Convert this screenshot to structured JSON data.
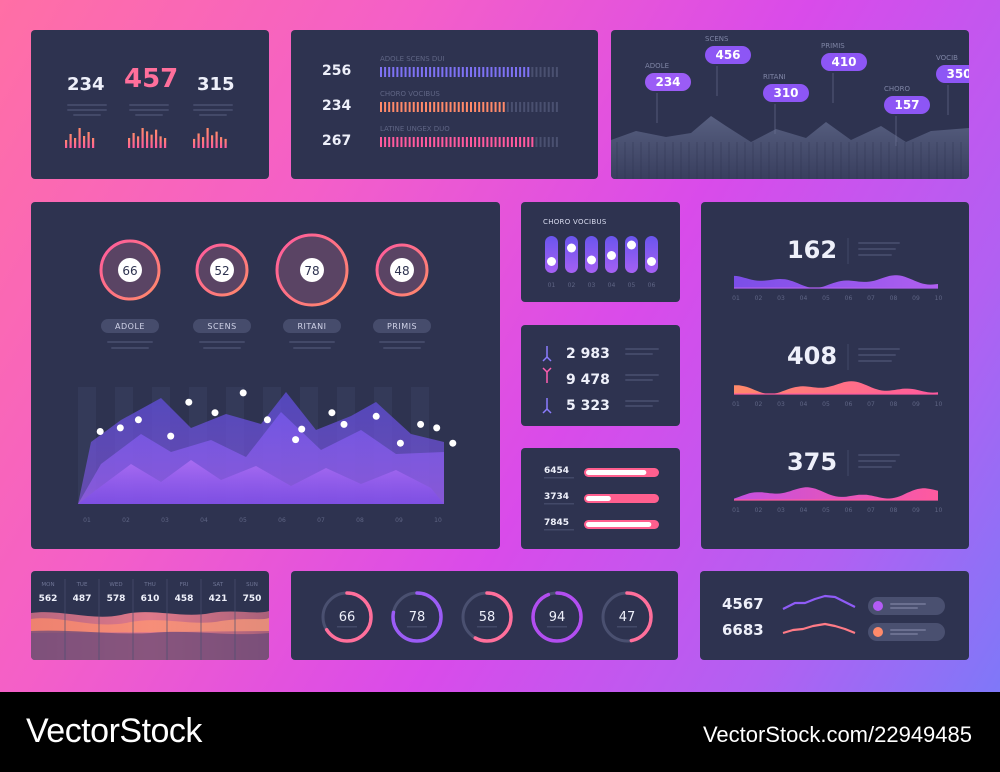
{
  "watermark": {
    "brand": "VectorStock",
    "id": "VectorStock.com/22949485"
  },
  "panel1": {
    "stats": [
      {
        "value": "234",
        "color": "#eef0fa"
      },
      {
        "value": "457",
        "color": "#ff6f9b"
      },
      {
        "value": "315",
        "color": "#eef0fa"
      }
    ],
    "chart_data": {
      "type": "bar",
      "series": [
        {
          "values": [
            4,
            7,
            5,
            10,
            6,
            8,
            5
          ]
        },
        {
          "values": [
            6,
            9,
            7,
            12,
            10,
            8,
            11,
            7,
            6
          ]
        },
        {
          "values": [
            5,
            8,
            6,
            11,
            7,
            9,
            6,
            5
          ]
        }
      ]
    }
  },
  "panel2": {
    "rows": [
      {
        "value": "256",
        "label": "ADOLE SCENS DUI",
        "fraction": 0.84,
        "color": "#7e72f4"
      },
      {
        "value": "234",
        "label": "CHORO VOCIBUS",
        "fraction": 0.71,
        "color": "#ff8a6a"
      },
      {
        "value": "267",
        "label": "LATINE UNGEX DUO",
        "fraction": 0.86,
        "color": "#ff5a9e"
      }
    ]
  },
  "panel3": {
    "chart_data": {
      "type": "area",
      "callouts": [
        {
          "label": "ADOLE",
          "value": "234"
        },
        {
          "label": "SCENS",
          "value": "456"
        },
        {
          "label": "RITANI",
          "value": "310"
        },
        {
          "label": "PRIMIS",
          "value": "410"
        },
        {
          "label": "CHORO",
          "value": "157"
        },
        {
          "label": "VOCIB",
          "value": "350"
        }
      ]
    }
  },
  "panel4": {
    "gauges": [
      {
        "value": "66",
        "label": "ADOLE"
      },
      {
        "value": "52",
        "label": "SCENS"
      },
      {
        "value": "78",
        "label": "RITANI"
      },
      {
        "value": "48",
        "label": "PRIMIS"
      }
    ],
    "chart_data": {
      "type": "area",
      "x": [
        "01",
        "02",
        "03",
        "04",
        "05",
        "06",
        "07",
        "08",
        "09",
        "10"
      ],
      "points": [
        [
          0.55,
          0.62
        ],
        [
          1.05,
          0.65
        ],
        [
          1.5,
          0.72
        ],
        [
          2.3,
          0.58
        ],
        [
          2.75,
          0.87
        ],
        [
          3.4,
          0.78
        ],
        [
          4.1,
          0.95
        ],
        [
          4.7,
          0.72
        ],
        [
          5.4,
          0.55
        ],
        [
          5.55,
          0.64
        ],
        [
          6.3,
          0.78
        ],
        [
          6.6,
          0.68
        ],
        [
          7.4,
          0.75
        ],
        [
          8.0,
          0.52
        ],
        [
          8.5,
          0.68
        ],
        [
          8.9,
          0.65
        ],
        [
          9.3,
          0.52
        ]
      ]
    }
  },
  "panel5": {
    "title": "CHORO VOCIBUS",
    "chart_data": {
      "type": "slider",
      "categories": [
        "01",
        "02",
        "03",
        "04",
        "05",
        "06"
      ],
      "values": [
        0.35,
        0.8,
        0.4,
        0.55,
        0.9,
        0.35
      ]
    }
  },
  "panel6": {
    "rows": [
      {
        "direction": "up",
        "value": "2 983",
        "color": "#8b7cff"
      },
      {
        "direction": "down",
        "value": "9 478",
        "color": "#ff5fb0"
      },
      {
        "direction": "up",
        "value": "5 323",
        "color": "#8b7cff"
      }
    ]
  },
  "panel7": {
    "rows": [
      {
        "value": "6454",
        "fraction": 0.85
      },
      {
        "value": "3734",
        "fraction": 0.35
      },
      {
        "value": "7845",
        "fraction": 0.92
      }
    ]
  },
  "panel8": {
    "charts": [
      {
        "value": "162",
        "color_a": "#7b4ee8",
        "color_b": "#b05ff0"
      },
      {
        "value": "408",
        "color_a": "#ff8a6a",
        "color_b": "#ff5a9e"
      },
      {
        "value": "375",
        "color_a": "#c44fe0",
        "color_b": "#ff5a9e"
      }
    ],
    "x": [
      "01",
      "02",
      "03",
      "04",
      "05",
      "06",
      "07",
      "08",
      "09",
      "10"
    ]
  },
  "panel9": {
    "chart_data": {
      "type": "area",
      "categories": [
        "MON",
        "TUE",
        "WED",
        "THU",
        "FRI",
        "SAT",
        "SUN"
      ],
      "values": [
        562,
        487,
        578,
        610,
        458,
        421,
        750
      ]
    }
  },
  "panel10": {
    "donuts": [
      {
        "value": "66",
        "fraction": 0.66,
        "color": "#ff6f9b"
      },
      {
        "value": "78",
        "fraction": 0.78,
        "color": "#9b5cf6"
      },
      {
        "value": "58",
        "fraction": 0.58,
        "color": "#ff6f9b"
      },
      {
        "value": "94",
        "fraction": 0.94,
        "color": "#b24ef0"
      },
      {
        "value": "47",
        "fraction": 0.47,
        "color": "#ff6f9b"
      }
    ]
  },
  "panel11": {
    "rows": [
      {
        "value": "4567",
        "color": "#8f5cf7",
        "dot": "#b35cf6"
      },
      {
        "value": "6683",
        "color": "#ff7b86",
        "dot": "#ff8a6a"
      }
    ]
  }
}
